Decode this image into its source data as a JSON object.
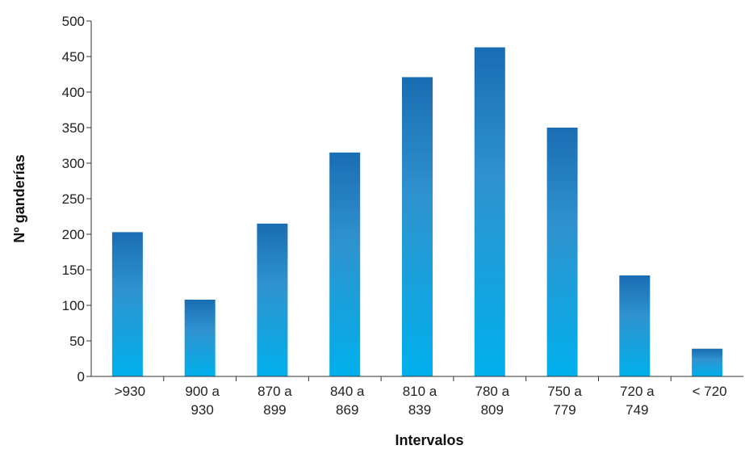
{
  "chart_data": {
    "type": "bar",
    "title": "",
    "xlabel": "Intervalos",
    "ylabel": "Nº ganderías",
    "categories": [
      [
        ">930"
      ],
      [
        "900 a",
        "930"
      ],
      [
        "870 a",
        "899"
      ],
      [
        "840 a",
        "869"
      ],
      [
        "810 a",
        "839"
      ],
      [
        "780 a",
        "809"
      ],
      [
        "750 a",
        "779"
      ],
      [
        "720 a",
        "749"
      ],
      [
        "< 720"
      ]
    ],
    "values": [
      203,
      108,
      215,
      315,
      421,
      463,
      350,
      142,
      39
    ],
    "ylim": [
      0,
      500
    ],
    "yticks": [
      0,
      50,
      100,
      150,
      200,
      250,
      300,
      350,
      400,
      450,
      500
    ],
    "grid": false,
    "legend": "none",
    "colors": {
      "bar_top": "#1a6db3",
      "bar_mid": "#2f93cf",
      "bar_bottom": "#00b0ec",
      "axis": "#333333"
    }
  }
}
